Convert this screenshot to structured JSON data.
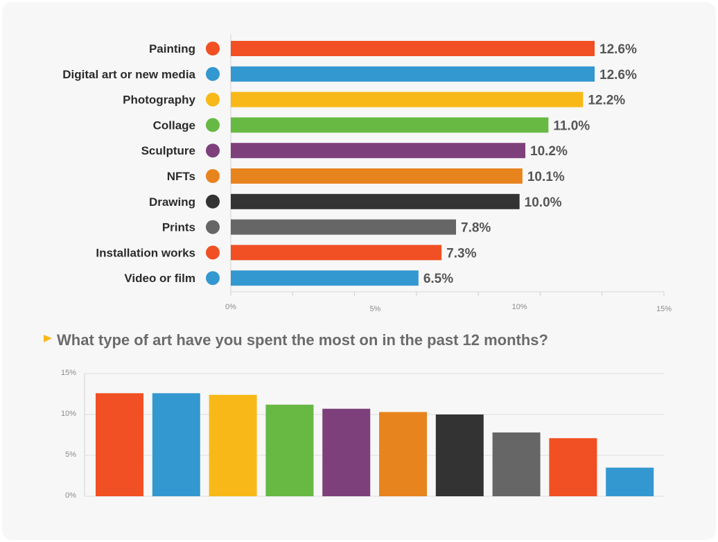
{
  "question": "What type of art have you spent the most on in the past 12 months?",
  "chart_data": [
    {
      "type": "bar",
      "orientation": "horizontal",
      "categories": [
        "Painting",
        "Digital art or new media",
        "Photography",
        "Collage",
        "Sculpture",
        "NFTs",
        "Drawing",
        "Prints",
        "Installation works",
        "Video or film"
      ],
      "values": [
        12.6,
        12.6,
        12.2,
        11.0,
        10.2,
        10.1,
        10.0,
        7.8,
        7.3,
        6.5
      ],
      "value_labels": [
        "12.6%",
        "12.6%",
        "12.2%",
        "11.0%",
        "10.2%",
        "10.1%",
        "10.0%",
        "7.8%",
        "7.3%",
        "6.5%"
      ],
      "colors": [
        "#f05023",
        "#3498d0",
        "#f8b817",
        "#67b944",
        "#7e407b",
        "#e8841e",
        "#333333",
        "#666666",
        "#f05023",
        "#3498d0"
      ],
      "xlim": [
        0,
        15
      ],
      "xticks": [
        "0%",
        "5%",
        "10%",
        "15%"
      ],
      "title": "",
      "xlabel": "",
      "ylabel": ""
    },
    {
      "type": "bar",
      "orientation": "vertical",
      "values": [
        12.6,
        12.6,
        12.4,
        11.2,
        10.7,
        10.3,
        10.0,
        7.8,
        7.1,
        3.5
      ],
      "colors": [
        "#f05023",
        "#3498d0",
        "#f8b817",
        "#67b944",
        "#7e407b",
        "#e8841e",
        "#333333",
        "#666666",
        "#f05023",
        "#3498d0"
      ],
      "ylim": [
        0,
        15
      ],
      "yticks": [
        "0%",
        "5%",
        "10%",
        "15%"
      ],
      "grid": true,
      "title": "What type of art have you spent the most on in the past 12 months?",
      "xlabel": "",
      "ylabel": ""
    }
  ]
}
